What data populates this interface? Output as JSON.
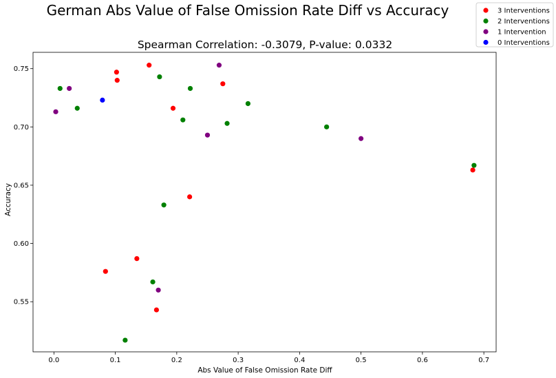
{
  "chart_data": {
    "type": "scatter",
    "title": "German Abs Value of False Omission Rate Diff vs Accuracy",
    "subtitle": "Spearman Correlation: -0.3079, P-value: 0.0332",
    "xlabel": "Abs Value of False Omission Rate Diff",
    "ylabel": "Accuracy",
    "xlim": [
      -0.034,
      0.72
    ],
    "ylim": [
      0.507,
      0.764
    ],
    "xticks": [
      0.0,
      0.1,
      0.2,
      0.3,
      0.4,
      0.5,
      0.6,
      0.7
    ],
    "xtick_labels": [
      "0.0",
      "0.1",
      "0.2",
      "0.3",
      "0.4",
      "0.5",
      "0.6",
      "0.7"
    ],
    "yticks": [
      0.55,
      0.6,
      0.65,
      0.7,
      0.75
    ],
    "ytick_labels": [
      "0.55",
      "0.60",
      "0.65",
      "0.70",
      "0.75"
    ],
    "grid": false,
    "legend_position": "top-right-outside",
    "series": [
      {
        "name": "3 Interventions",
        "color": "#ff0000",
        "points": [
          {
            "x": 0.155,
            "y": 0.753
          },
          {
            "x": 0.102,
            "y": 0.747
          },
          {
            "x": 0.103,
            "y": 0.74
          },
          {
            "x": 0.275,
            "y": 0.737
          },
          {
            "x": 0.194,
            "y": 0.716
          },
          {
            "x": 0.682,
            "y": 0.663
          },
          {
            "x": 0.221,
            "y": 0.64
          },
          {
            "x": 0.135,
            "y": 0.587
          },
          {
            "x": 0.084,
            "y": 0.576
          },
          {
            "x": 0.167,
            "y": 0.543
          }
        ]
      },
      {
        "name": "2 Interventions",
        "color": "#008000",
        "points": [
          {
            "x": 0.01,
            "y": 0.733
          },
          {
            "x": 0.172,
            "y": 0.743
          },
          {
            "x": 0.222,
            "y": 0.733
          },
          {
            "x": 0.316,
            "y": 0.72
          },
          {
            "x": 0.038,
            "y": 0.716
          },
          {
            "x": 0.21,
            "y": 0.706
          },
          {
            "x": 0.282,
            "y": 0.703
          },
          {
            "x": 0.444,
            "y": 0.7
          },
          {
            "x": 0.684,
            "y": 0.667
          },
          {
            "x": 0.179,
            "y": 0.633
          },
          {
            "x": 0.161,
            "y": 0.567
          },
          {
            "x": 0.116,
            "y": 0.517
          }
        ]
      },
      {
        "name": "1 Intervention",
        "color": "#800080",
        "points": [
          {
            "x": 0.269,
            "y": 0.753
          },
          {
            "x": 0.025,
            "y": 0.733
          },
          {
            "x": 0.003,
            "y": 0.713
          },
          {
            "x": 0.25,
            "y": 0.693
          },
          {
            "x": 0.5,
            "y": 0.69
          },
          {
            "x": 0.17,
            "y": 0.56
          }
        ]
      },
      {
        "name": "0 Interventions",
        "color": "#0000ff",
        "points": [
          {
            "x": 0.079,
            "y": 0.723
          }
        ]
      }
    ]
  }
}
